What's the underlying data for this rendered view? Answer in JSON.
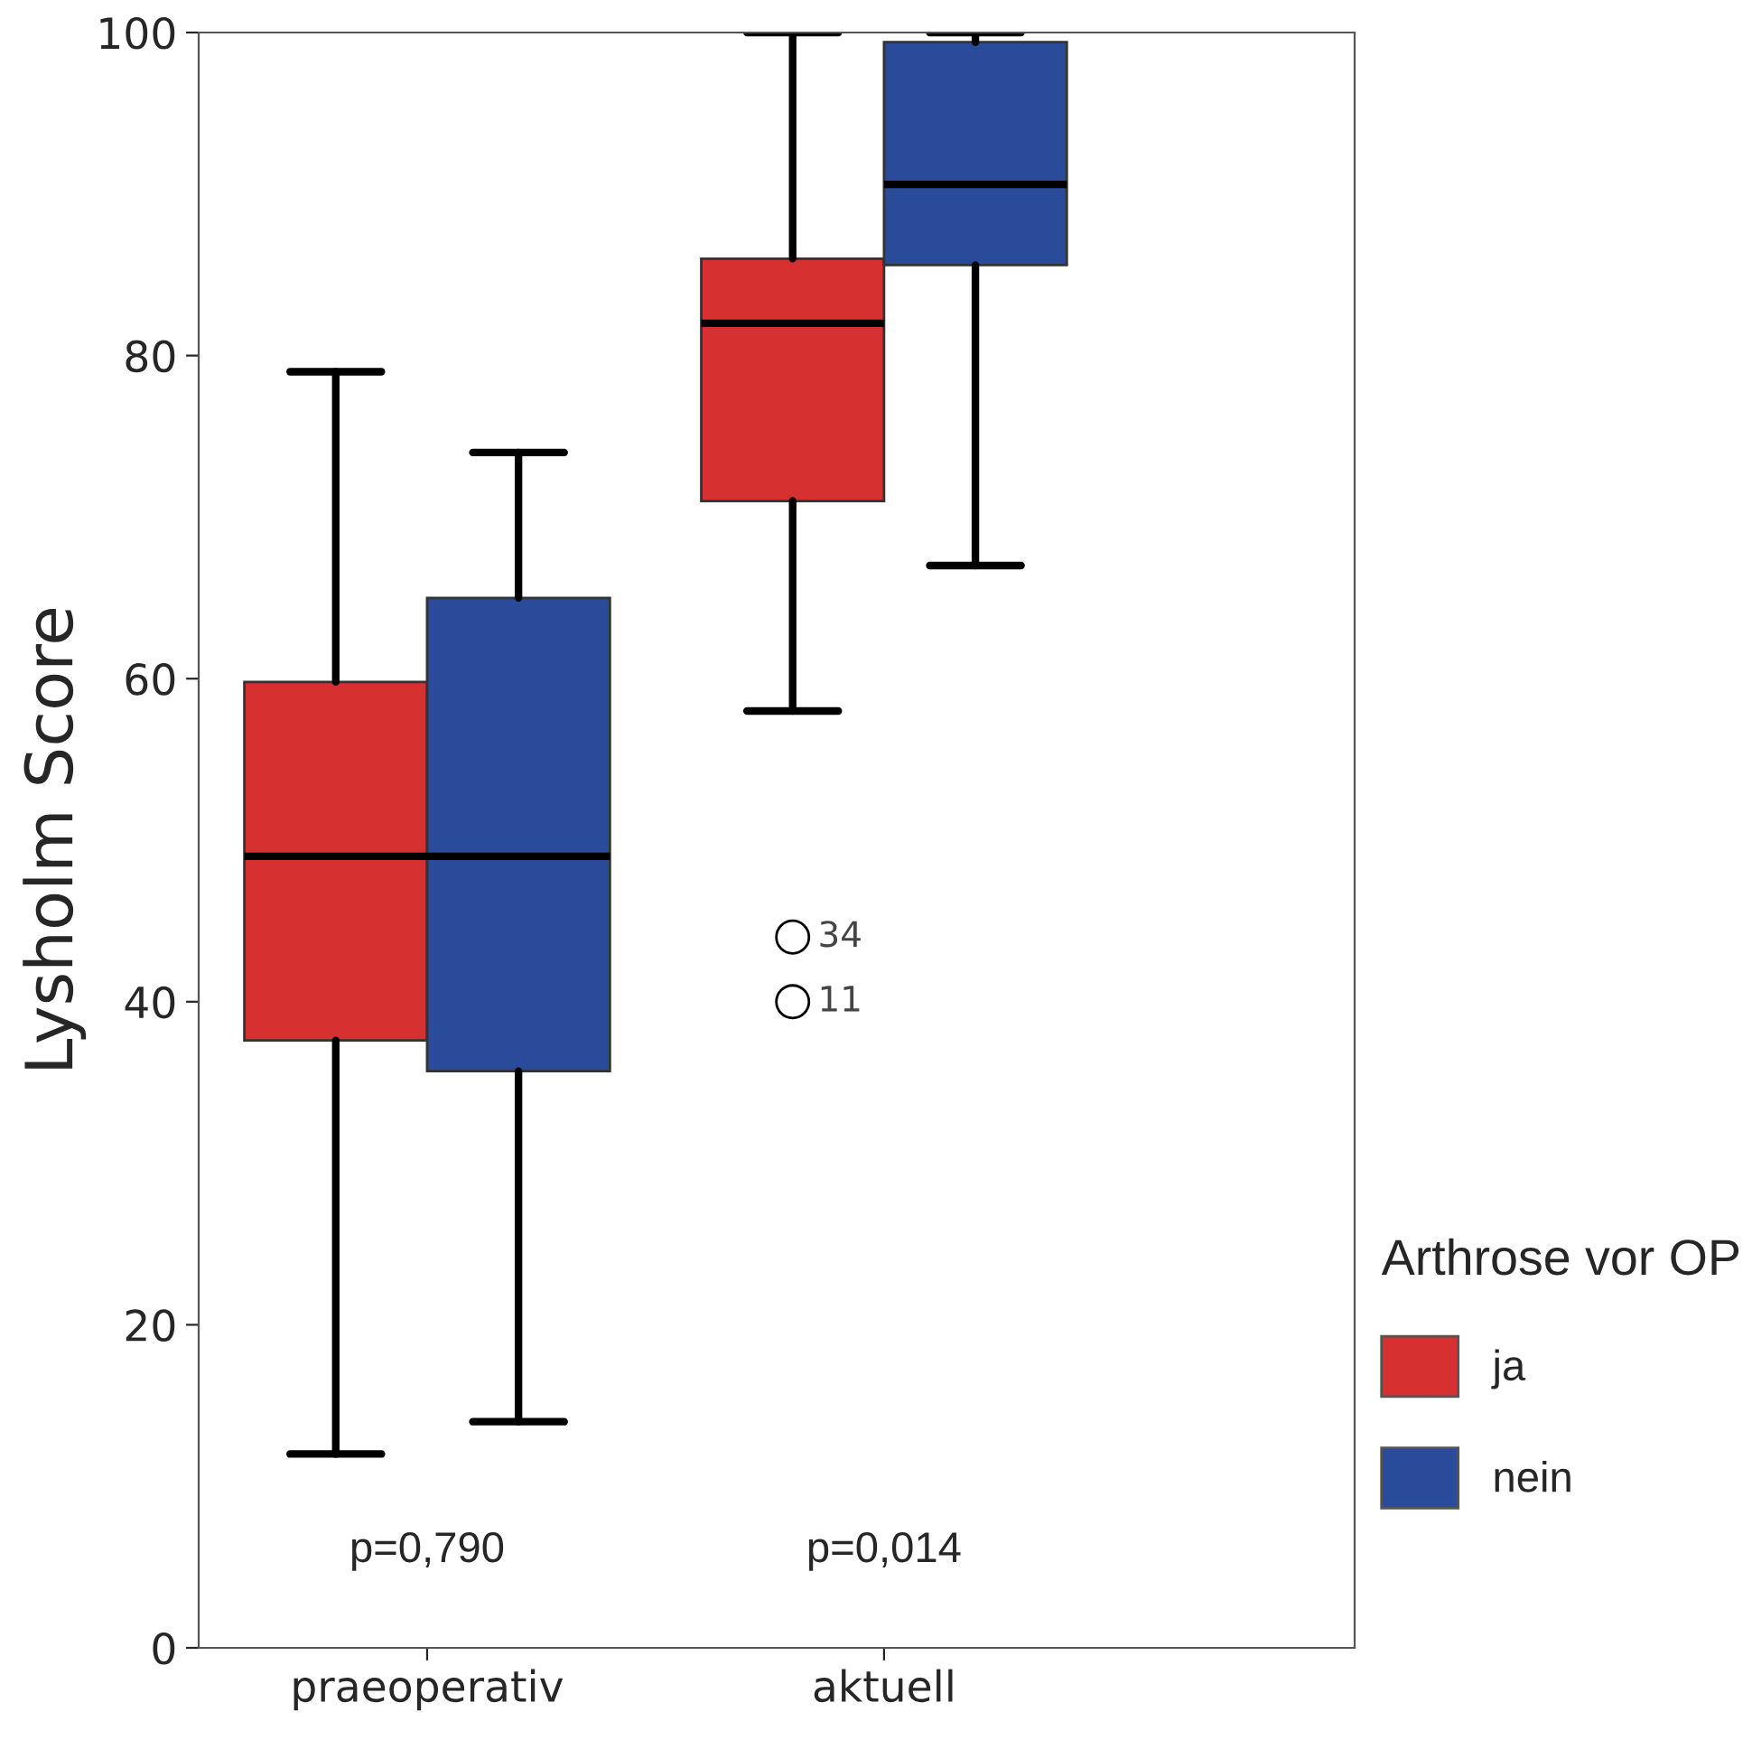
{
  "chart_data": {
    "type": "box",
    "ylabel": "Lysholm Score",
    "legend_title": "Arthrose vor OP",
    "legend": "right",
    "categories": [
      "praeoperativ",
      "aktuell"
    ],
    "series": [
      {
        "name": "ja",
        "color": "#d63030",
        "boxes": [
          {
            "low": 12,
            "q1": 37.6,
            "median": 49,
            "q3": 59.8,
            "high": 79
          },
          {
            "low": 58,
            "q1": 71,
            "median": 82,
            "q3": 86,
            "high": 100,
            "outliers": [
              44,
              40
            ]
          }
        ]
      },
      {
        "name": "nein",
        "color": "#2a4a9a",
        "boxes": [
          {
            "low": 14,
            "q1": 35.7,
            "median": 49,
            "q3": 65,
            "high": 74
          },
          {
            "low": 67,
            "q1": 85.6,
            "median": 90.6,
            "q3": 99.4,
            "high": 100
          }
        ]
      }
    ],
    "ylim": [
      0,
      100
    ],
    "yticks": [
      0,
      20,
      40,
      60,
      80,
      100
    ],
    "grid": false,
    "annotations": [
      "34",
      "11",
      "p=0,790",
      "p=0,014"
    ]
  }
}
